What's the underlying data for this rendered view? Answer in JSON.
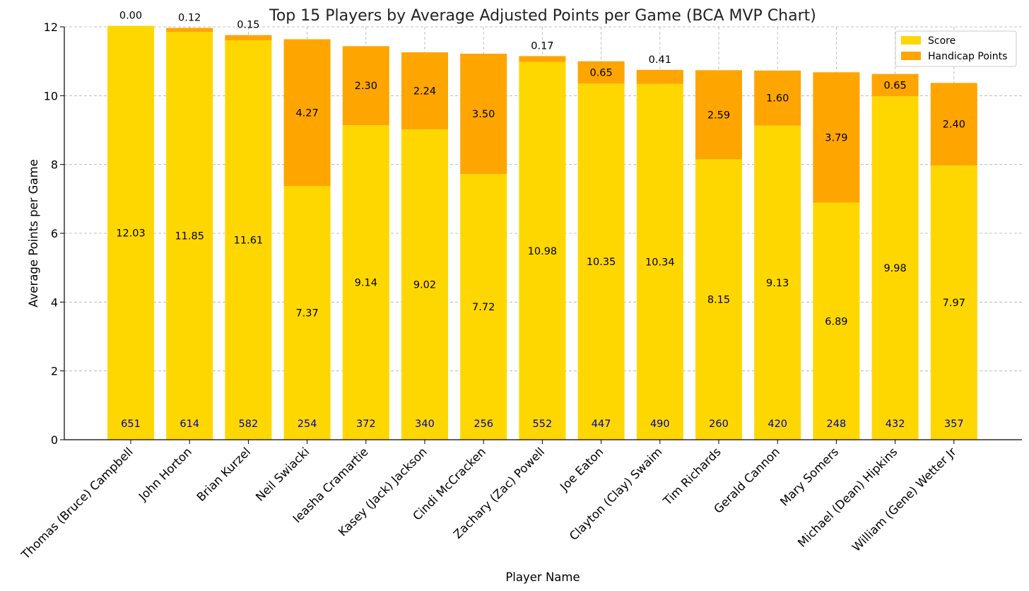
{
  "chart_data": {
    "type": "bar",
    "stacked": true,
    "title": "Top 15 Players by Average Adjusted Points per Game (BCA MVP Chart)",
    "xlabel": "Player Name",
    "ylabel": "Average Points per Game",
    "ylim": [
      0,
      12
    ],
    "yticks": [
      0,
      2,
      4,
      6,
      8,
      10,
      12
    ],
    "grid": true,
    "legend_position": "top-right",
    "categories": [
      "Thomas (Bruce) Campbell",
      "John Horton",
      "Brian Kurzel",
      "Neil Swiacki",
      "Ieasha Cramartie",
      "Kasey (Jack) Jackson",
      "Cindi McCracken",
      "Zachary (Zac) Powell",
      "Joe Eaton",
      "Clayton (Clay) Swaim",
      "Tim Richards",
      "Gerald Cannon",
      "Mary Somers",
      "Michael (Dean) Hipkins",
      "William (Gene) Wetter Jr"
    ],
    "series": [
      {
        "name": "Score",
        "color": "#FFD700",
        "values": [
          12.03,
          11.85,
          11.61,
          7.37,
          9.14,
          9.02,
          7.72,
          10.98,
          10.35,
          10.34,
          8.15,
          9.13,
          6.89,
          9.98,
          7.97
        ],
        "labels": [
          "12.03",
          "11.85",
          "11.61",
          "7.37",
          "9.14",
          "9.02",
          "7.72",
          "10.98",
          "10.35",
          "10.34",
          "8.15",
          "9.13",
          "6.89",
          "9.98",
          "7.97"
        ]
      },
      {
        "name": "Handicap Points",
        "color": "#FFA500",
        "values": [
          0.0,
          0.12,
          0.15,
          4.27,
          2.3,
          2.24,
          3.5,
          0.17,
          0.65,
          0.41,
          2.59,
          1.6,
          3.79,
          0.65,
          2.4
        ],
        "labels": [
          "0.00",
          "0.12",
          "0.15",
          "4.27",
          "2.30",
          "2.24",
          "3.50",
          "0.17",
          "0.65",
          "0.41",
          "2.59",
          "1.60",
          "3.79",
          "0.65",
          "2.40"
        ]
      }
    ],
    "games_played": [
      "651",
      "614",
      "582",
      "254",
      "372",
      "340",
      "256",
      "552",
      "447",
      "490",
      "260",
      "420",
      "248",
      "432",
      "357"
    ],
    "games_played_color": "#0000aa",
    "ytick_labels": [
      "0",
      "2",
      "4",
      "6",
      "8",
      "10",
      "12"
    ]
  }
}
